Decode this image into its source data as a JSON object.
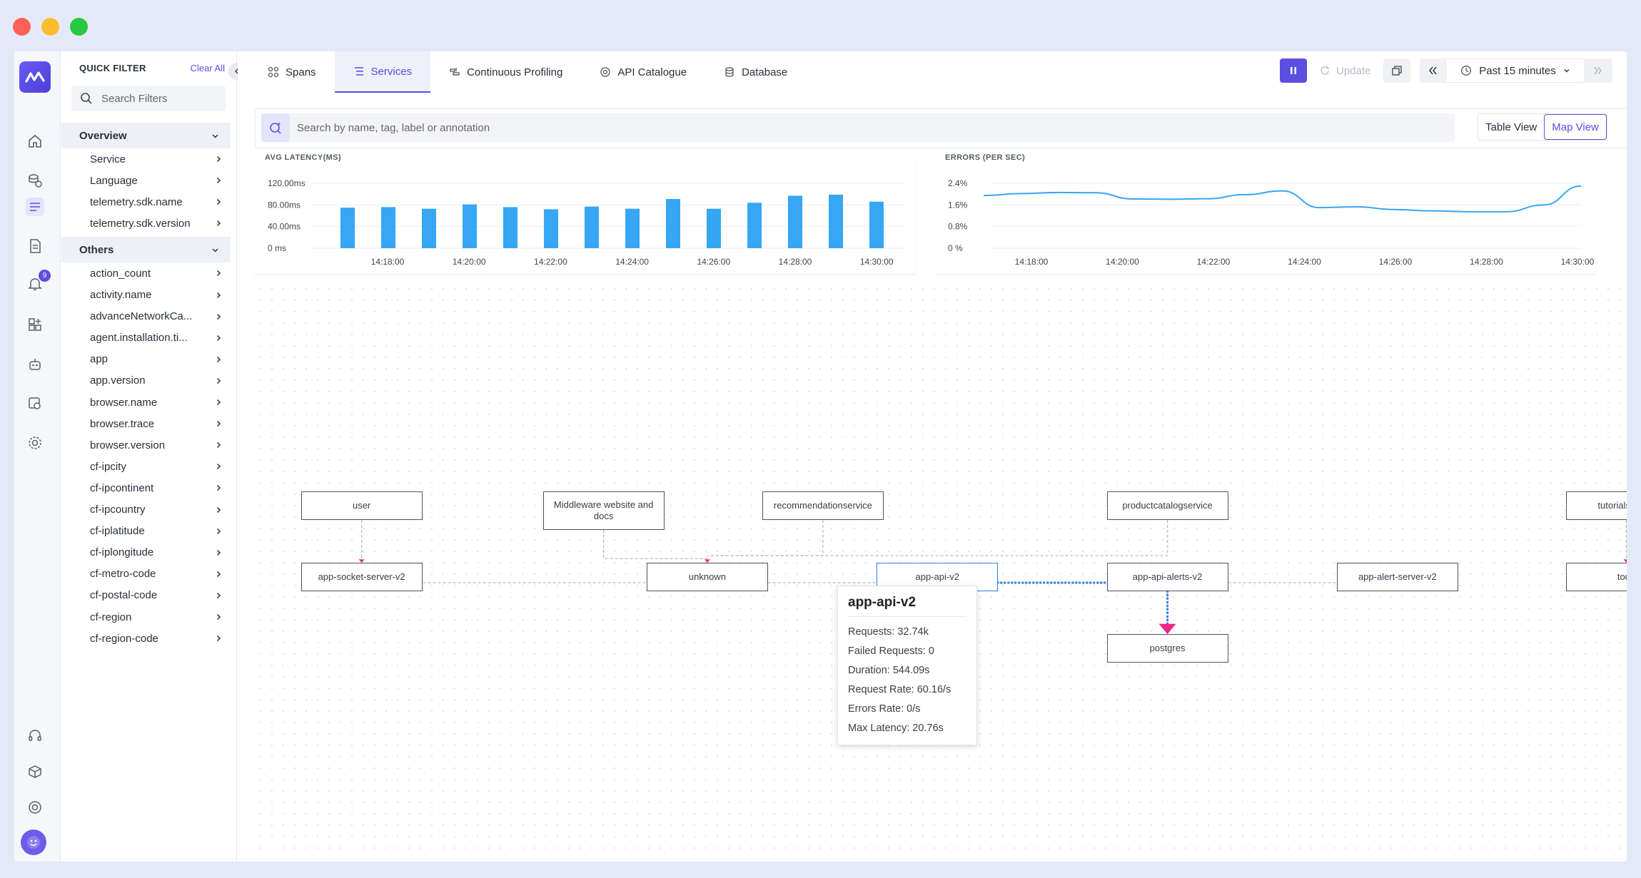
{
  "filters": {
    "header": "QUICK FILTER",
    "clear_label": "Clear All",
    "search_placeholder": "Search Filters",
    "groups": [
      {
        "label": "Overview",
        "items": [
          "Service",
          "Language",
          "telemetry.sdk.name",
          "telemetry.sdk.version"
        ]
      },
      {
        "label": "Others",
        "items": [
          "action_count",
          "activity.name",
          "advanceNetworkCa...",
          "agent.installation.ti...",
          "app",
          "app.version",
          "browser.name",
          "browser.trace",
          "browser.version",
          "cf-ipcity",
          "cf-ipcontinent",
          "cf-ipcountry",
          "cf-iplatitude",
          "cf-iplongitude",
          "cf-metro-code",
          "cf-postal-code",
          "cf-region",
          "cf-region-code"
        ]
      }
    ]
  },
  "rail": {
    "alerts_badge": "9"
  },
  "tabs": [
    {
      "label": "Spans",
      "icon": "spans-icon"
    },
    {
      "label": "Services",
      "icon": "list-icon"
    },
    {
      "label": "Continuous Profiling",
      "icon": "profiling-icon"
    },
    {
      "label": "API Catalogue",
      "icon": "api-icon"
    },
    {
      "label": "Database",
      "icon": "database-icon"
    }
  ],
  "toolbar": {
    "update_label": "Update",
    "time_range": "Past 15 minutes"
  },
  "search": {
    "placeholder": "Search by name, tag, label or annotation"
  },
  "view": {
    "table_label": "Table View",
    "map_label": "Map View"
  },
  "chart_data": [
    {
      "type": "bar",
      "title": "AVG LATENCY(MS)",
      "y_ticks": [
        "0 ms",
        "40.00ms",
        "80.00ms",
        "120.00ms"
      ],
      "ylim": [
        0,
        120
      ],
      "x_ticks": [
        "14:18:00",
        "14:20:00",
        "14:22:00",
        "14:24:00",
        "14:26:00",
        "14:28:00",
        "14:30:00"
      ],
      "values": [
        75,
        76,
        73,
        81,
        76,
        72,
        77,
        73,
        91,
        73,
        84,
        97,
        99,
        86
      ],
      "color": "#36a6f5"
    },
    {
      "type": "line",
      "title": "ERRORS (PER SEC)",
      "y_ticks": [
        "0 %",
        "0.8%",
        "1.6%",
        "2.4%"
      ],
      "ylim": [
        0,
        2.4
      ],
      "x_ticks": [
        "14:18:00",
        "14:20:00",
        "14:22:00",
        "14:24:00",
        "14:26:00",
        "14:28:00",
        "14:30:00"
      ],
      "values": [
        1.95,
        2.02,
        2.06,
        2.05,
        1.82,
        1.81,
        1.83,
        1.98,
        2.12,
        1.5,
        1.53,
        1.43,
        1.38,
        1.35,
        1.35,
        1.6,
        2.3
      ],
      "color": "#36a6f5"
    }
  ],
  "map": {
    "nodes": [
      {
        "id": "user",
        "label": "user"
      },
      {
        "id": "middleware",
        "label": "Middleware website and docs"
      },
      {
        "id": "recommendation",
        "label": "recommendationservice"
      },
      {
        "id": "productcatalog",
        "label": "productcatalogservice"
      },
      {
        "id": "tutorial",
        "label": "tutorialservice"
      },
      {
        "id": "socket",
        "label": "app-socket-server-v2"
      },
      {
        "id": "unknown",
        "label": "unknown"
      },
      {
        "id": "apiv2",
        "label": "app-api-v2"
      },
      {
        "id": "alerts",
        "label": "app-api-alerts-v2"
      },
      {
        "id": "alertserver",
        "label": "app-alert-server-v2"
      },
      {
        "id": "todo",
        "label": "todo"
      },
      {
        "id": "postgres",
        "label": "postgres"
      }
    ],
    "tooltip": {
      "title": "app-api-v2",
      "lines": [
        "Requests: 32.74k",
        "Failed Requests: 0",
        "Duration: 544.09s",
        "Request Rate: 60.16/s",
        "Errors Rate: 0/s",
        "Max Latency: 20.76s"
      ]
    },
    "colors": {
      "edge": "#b5b9c3",
      "active_edge": "#2f7fe0",
      "arrow": "#f0248a"
    }
  }
}
